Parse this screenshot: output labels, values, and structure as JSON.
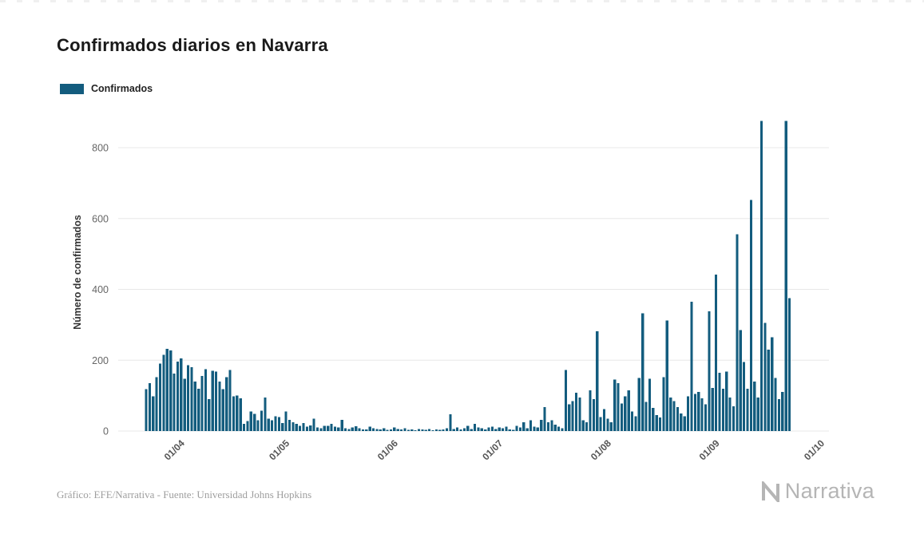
{
  "page": {
    "title": "Confirmados diarios en Navarra",
    "legend": {
      "label": "Confirmados",
      "color": "#135c7e"
    },
    "footer": {
      "credit": "Gráfico: EFE/Narrativa - Fuente: Universidad Johns Hopkins",
      "brand": "Narrativa"
    }
  },
  "chart_data": {
    "type": "bar",
    "title": "Confirmados diarios en Navarra",
    "xlabel": "",
    "ylabel": "Número de confirmados",
    "ylim": [
      0,
      900
    ],
    "y_ticks": [
      0,
      200,
      400,
      600,
      800
    ],
    "x_tick_labels": [
      "01/04",
      "01/05",
      "01/06",
      "01/07",
      "01/08",
      "01/09",
      "01/10"
    ],
    "x_tick_day_index": [
      10,
      40,
      71,
      101,
      132,
      163,
      193
    ],
    "grid": "horizontal",
    "legend_position": "top-left",
    "bar_color": "#135c7e",
    "series": [
      {
        "name": "Confirmados",
        "values": [
          118,
          135,
          98,
          152,
          190,
          215,
          232,
          228,
          162,
          196,
          205,
          148,
          186,
          180,
          140,
          120,
          155,
          175,
          90,
          170,
          168,
          140,
          118,
          152,
          172,
          98,
          100,
          92,
          20,
          28,
          55,
          48,
          30,
          58,
          95,
          35,
          30,
          42,
          40,
          22,
          55,
          32,
          25,
          20,
          15,
          22,
          12,
          16,
          35,
          10,
          8,
          15,
          15,
          20,
          12,
          10,
          32,
          8,
          6,
          10,
          14,
          8,
          5,
          4,
          12,
          8,
          6,
          4,
          8,
          3,
          5,
          10,
          6,
          4,
          8,
          3,
          5,
          2,
          6,
          4,
          3,
          6,
          2,
          4,
          3,
          5,
          8,
          47,
          6,
          10,
          4,
          8,
          15,
          6,
          20,
          10,
          8,
          4,
          10,
          12,
          6,
          10,
          8,
          12,
          5,
          3,
          15,
          10,
          25,
          8,
          30,
          12,
          10,
          32,
          68,
          25,
          30,
          18,
          12,
          8,
          172,
          75,
          85,
          108,
          95,
          30,
          25,
          115,
          90,
          282,
          40,
          62,
          35,
          25,
          145,
          135,
          78,
          98,
          115,
          55,
          42,
          150,
          332,
          82,
          148,
          65,
          45,
          38,
          152,
          312,
          95,
          85,
          68,
          50,
          42,
          98,
          365,
          105,
          110,
          92,
          75,
          338,
          122,
          442,
          165,
          120,
          168,
          95,
          70,
          555,
          285,
          195,
          120,
          652,
          140,
          95,
          875,
          305,
          230,
          265,
          150,
          90,
          110,
          875,
          375
        ]
      }
    ]
  }
}
